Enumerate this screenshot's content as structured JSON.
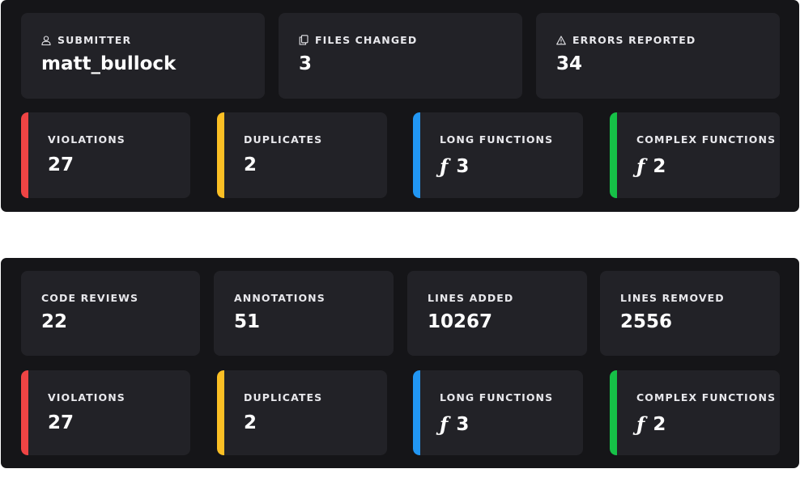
{
  "summary": {
    "submitter": {
      "label": "SUBMITTER",
      "value": "matt_bullock",
      "icon": "user-icon"
    },
    "files_changed": {
      "label": "FILES CHANGED",
      "value": "3",
      "icon": "files-icon"
    },
    "errors_reported": {
      "label": "ERRORS REPORTED",
      "value": "34",
      "icon": "warning-icon"
    }
  },
  "totals": {
    "code_reviews": {
      "label": "CODE REVIEWS",
      "value": "22"
    },
    "annotations": {
      "label": "ANNOTATIONS",
      "value": "51"
    },
    "lines_added": {
      "label": "LINES ADDED",
      "value": "10267"
    },
    "lines_removed": {
      "label": "LINES REMOVED",
      "value": "2556"
    }
  },
  "metrics_1": {
    "violations": {
      "label": "VIOLATIONS",
      "value": "27",
      "color": "#ef4444"
    },
    "duplicates": {
      "label": "DUPLICATES",
      "value": "2",
      "color": "#fbbf24"
    },
    "long_functions": {
      "label": "LONG FUNCTIONS",
      "value": "3",
      "color": "#2196f3",
      "icon": "function-icon"
    },
    "complex_functions": {
      "label": "COMPLEX FUNCTIONS",
      "value": "2",
      "color": "#16c147",
      "icon": "function-icon"
    }
  },
  "metrics_2": {
    "violations": {
      "label": "VIOLATIONS",
      "value": "27",
      "color": "#ef4444"
    },
    "duplicates": {
      "label": "DUPLICATES",
      "value": "2",
      "color": "#fbbf24"
    },
    "long_functions": {
      "label": "LONG FUNCTIONS",
      "value": "3",
      "color": "#2196f3",
      "icon": "function-icon"
    },
    "complex_functions": {
      "label": "COMPLEX FUNCTIONS",
      "value": "2",
      "color": "#16c147",
      "icon": "function-icon"
    }
  }
}
